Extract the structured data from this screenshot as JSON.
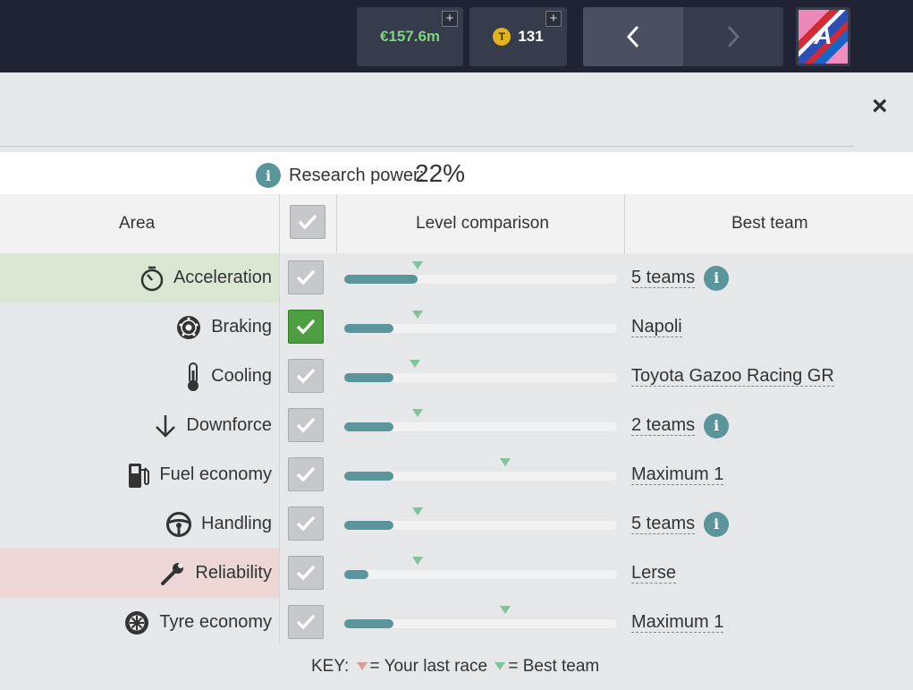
{
  "topbar": {
    "money": "€157.6m",
    "coins": "131",
    "coin_symbol": "T",
    "plus": "+",
    "logo_letter": "A"
  },
  "close_label": "×",
  "research": {
    "info": "i",
    "label": "Research power:",
    "value": "22%"
  },
  "header": {
    "area": "Area",
    "level": "Level comparison",
    "best": "Best team"
  },
  "rows": [
    {
      "area": "Acceleration",
      "icon": "stopwatch-icon",
      "checked": false,
      "level_fill": 0.27,
      "best_marker": 0.27,
      "best_team": "5 teams",
      "info": true,
      "highlight": "#d9e7d3"
    },
    {
      "area": "Braking",
      "icon": "brake-disc-icon",
      "checked": true,
      "level_fill": 0.18,
      "best_marker": 0.27,
      "best_team": "Napoli",
      "info": false,
      "highlight": ""
    },
    {
      "area": "Cooling",
      "icon": "thermometer-icon",
      "checked": false,
      "level_fill": 0.18,
      "best_marker": 0.26,
      "best_team": "Toyota Gazoo Racing GR",
      "info": false,
      "highlight": ""
    },
    {
      "area": "Downforce",
      "icon": "arrow-down-icon",
      "checked": false,
      "level_fill": 0.18,
      "best_marker": 0.27,
      "best_team": "2 teams",
      "info": true,
      "highlight": ""
    },
    {
      "area": "Fuel economy",
      "icon": "fuel-pump-icon",
      "checked": false,
      "level_fill": 0.18,
      "best_marker": 0.59,
      "best_team": "Maximum 1",
      "info": false,
      "highlight": ""
    },
    {
      "area": "Handling",
      "icon": "steering-wheel-icon",
      "checked": false,
      "level_fill": 0.18,
      "best_marker": 0.27,
      "best_team": "5 teams",
      "info": true,
      "highlight": ""
    },
    {
      "area": "Reliability",
      "icon": "wrench-icon",
      "checked": false,
      "level_fill": 0.09,
      "best_marker": 0.27,
      "best_team": "Lerse",
      "info": false,
      "highlight": "#ecd6d6"
    },
    {
      "area": "Tyre economy",
      "icon": "tyre-icon",
      "checked": false,
      "level_fill": 0.18,
      "best_marker": 0.59,
      "best_team": "Maximum 1",
      "info": false,
      "highlight": ""
    }
  ],
  "key": {
    "prefix": "KEY:",
    "last_race": "= Your last race",
    "best_team": "= Best team",
    "last_race_color": "#d99a9a",
    "best_team_color": "#7fc49a"
  }
}
